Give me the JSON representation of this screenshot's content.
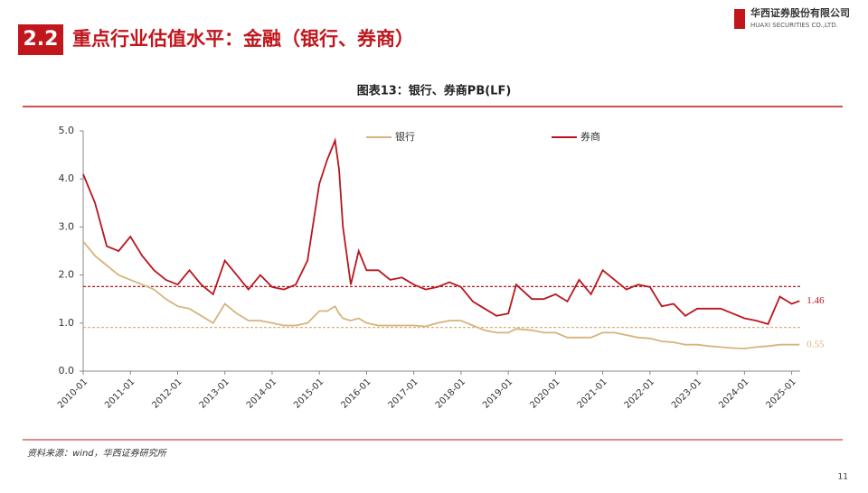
{
  "header": {
    "section": "2.2",
    "title": "重点行业估值水平：金融（银行、券商）",
    "company_cn": "华西证券股份有限公司",
    "company_en": "HUAXI SECURITIES CO.,LTD."
  },
  "chart_data": {
    "type": "line",
    "title": "图表13：银行、券商PB(LF)",
    "x": [
      "2010-01",
      "2010-04",
      "2010-07",
      "2010-10",
      "2011-01",
      "2011-04",
      "2011-07",
      "2011-10",
      "2012-01",
      "2012-04",
      "2012-07",
      "2012-10",
      "2013-01",
      "2013-04",
      "2013-07",
      "2013-10",
      "2014-01",
      "2014-04",
      "2014-07",
      "2014-10",
      "2015-01",
      "2015-03",
      "2015-05",
      "2015-06",
      "2015-07",
      "2015-09",
      "2015-11",
      "2016-01",
      "2016-04",
      "2016-07",
      "2016-10",
      "2017-01",
      "2017-04",
      "2017-07",
      "2017-10",
      "2018-01",
      "2018-04",
      "2018-07",
      "2018-10",
      "2019-01",
      "2019-03",
      "2019-07",
      "2019-10",
      "2020-01",
      "2020-04",
      "2020-07",
      "2020-10",
      "2021-01",
      "2021-04",
      "2021-07",
      "2021-10",
      "2022-01",
      "2022-04",
      "2022-07",
      "2022-10",
      "2023-01",
      "2023-04",
      "2023-07",
      "2023-10",
      "2024-01",
      "2024-04",
      "2024-07",
      "2024-10",
      "2025-01",
      "2025-03"
    ],
    "series": [
      {
        "name": "银行",
        "color": "#d6b47c",
        "values": [
          2.7,
          2.4,
          2.2,
          2.0,
          1.9,
          1.8,
          1.7,
          1.5,
          1.35,
          1.3,
          1.15,
          1.0,
          1.4,
          1.2,
          1.05,
          1.05,
          1.0,
          0.95,
          0.95,
          1.0,
          1.25,
          1.25,
          1.35,
          1.2,
          1.1,
          1.05,
          1.1,
          1.0,
          0.95,
          0.95,
          0.95,
          0.95,
          0.93,
          1.0,
          1.05,
          1.05,
          0.95,
          0.85,
          0.8,
          0.8,
          0.88,
          0.85,
          0.8,
          0.8,
          0.7,
          0.7,
          0.7,
          0.8,
          0.8,
          0.75,
          0.7,
          0.68,
          0.62,
          0.6,
          0.55,
          0.55,
          0.52,
          0.5,
          0.48,
          0.47,
          0.5,
          0.52,
          0.55,
          0.55,
          0.55
        ]
      },
      {
        "name": "券商",
        "color": "#b8161e",
        "values": [
          4.1,
          3.5,
          2.6,
          2.5,
          2.8,
          2.4,
          2.1,
          1.9,
          1.8,
          2.1,
          1.8,
          1.6,
          2.3,
          2.0,
          1.7,
          2.0,
          1.75,
          1.7,
          1.8,
          2.3,
          3.9,
          4.4,
          4.8,
          4.2,
          3.0,
          1.8,
          2.5,
          2.1,
          2.1,
          1.9,
          1.95,
          1.8,
          1.7,
          1.75,
          1.85,
          1.75,
          1.45,
          1.3,
          1.15,
          1.2,
          1.8,
          1.5,
          1.5,
          1.6,
          1.45,
          1.9,
          1.6,
          2.1,
          1.9,
          1.7,
          1.8,
          1.75,
          1.35,
          1.4,
          1.15,
          1.3,
          1.3,
          1.3,
          1.2,
          1.1,
          1.05,
          0.98,
          1.55,
          1.4,
          1.46
        ]
      }
    ],
    "hlines": [
      {
        "value": 1.76,
        "color": "#b8161e"
      },
      {
        "value": 0.91,
        "color": "#d6b47c"
      }
    ],
    "xlim": [
      "2010-01",
      "2025-05"
    ],
    "xticks": [
      "2010-01",
      "2011-01",
      "2012-01",
      "2013-01",
      "2014-01",
      "2015-01",
      "2016-01",
      "2017-01",
      "2018-01",
      "2019-01",
      "2020-01",
      "2021-01",
      "2022-01",
      "2023-01",
      "2024-01",
      "2025-01"
    ],
    "ylim": [
      0,
      5
    ],
    "yticks": [
      {
        "value": 0,
        "label": "0.0"
      },
      {
        "value": 1,
        "label": "1.0"
      },
      {
        "value": 2,
        "label": "2.0"
      },
      {
        "value": 3,
        "label": "3.0"
      },
      {
        "value": 4,
        "label": "4.0"
      },
      {
        "value": 5,
        "label": "5.0"
      }
    ],
    "legend": "top"
  },
  "source": "资料来源：wind，华西证券研究所",
  "page_number": "11"
}
